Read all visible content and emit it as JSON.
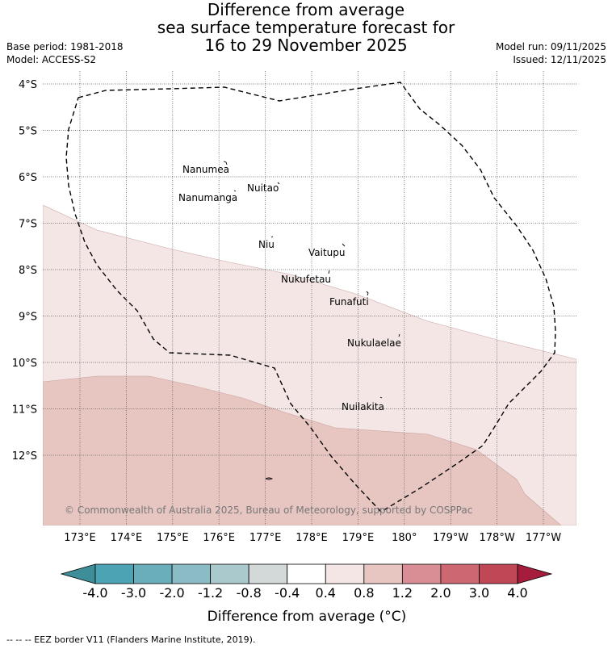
{
  "title": {
    "line1": "Difference from average",
    "line2": "sea surface temperature forecast for",
    "line3": "16 to 29 November 2025"
  },
  "meta": {
    "base_period": "Base period: 1981-2018",
    "model": "Model: ACCESS-S2",
    "model_run": "Model run: 09/11/2025",
    "issued": "Issued: 12/11/2025"
  },
  "map": {
    "lat_labels": [
      "4°S",
      "5°S",
      "6°S",
      "7°S",
      "8°S",
      "9°S",
      "10°S",
      "11°S",
      "12°S"
    ],
    "lon_labels": [
      "173°E",
      "174°E",
      "175°E",
      "176°E",
      "177°E",
      "178°E",
      "179°E",
      "180°",
      "179°W",
      "178°W",
      "177°W"
    ],
    "islands": [
      "Nanumea",
      "Nuitao",
      "Nanumanga",
      "Niu",
      "Vaitupu",
      "Nukufetau",
      "Funafuti",
      "Nukulaelae",
      "Nuilakita"
    ],
    "copyright": "© Commonwealth of Australia 2025, Bureau of Meteorology, supported by COSPPac"
  },
  "colorbar": {
    "ticks": [
      "-4.0",
      "-3.0",
      "-2.0",
      "-1.2",
      "-0.8",
      "-0.4",
      "0.4",
      "0.8",
      "1.2",
      "2.0",
      "3.0",
      "4.0"
    ],
    "colors": [
      "#4ba3b4",
      "#6aadbb",
      "#8bbcc5",
      "#a9c9cc",
      "#d3d8d9",
      "#ffffff",
      "#f4e6e5",
      "#e7c6c2",
      "#d98e96",
      "#cd6872",
      "#c04756"
    ],
    "under_color": "#3d8e99",
    "over_color": "#a51c3c",
    "label": "Difference from average (°C)"
  },
  "footnote": "-- -- -- EEZ border V11 (Flanders Marine Institute, 2019)."
}
